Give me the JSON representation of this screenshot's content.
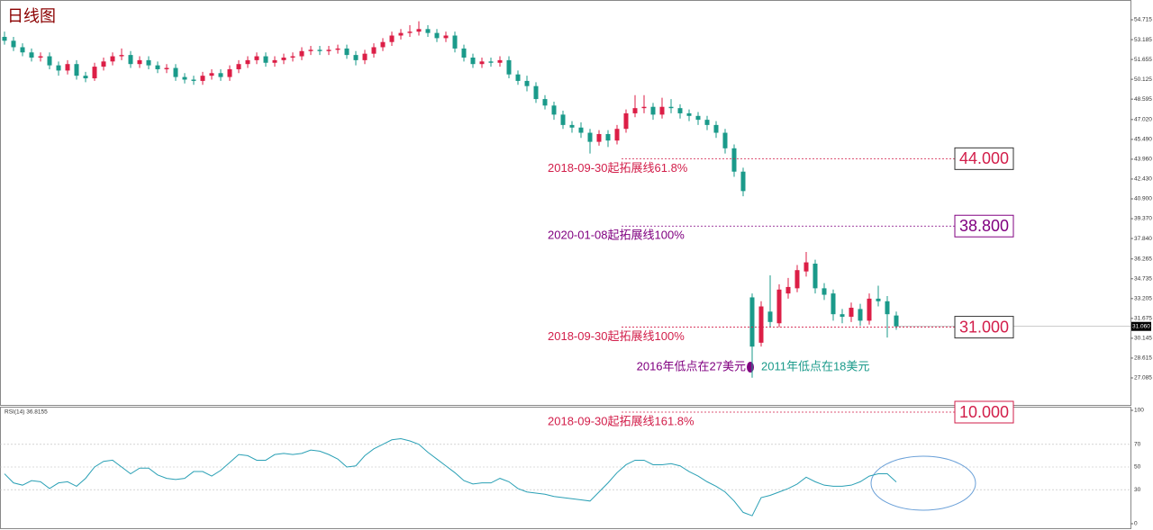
{
  "chart_data": [
    {
      "type": "candlestick",
      "title": "日线图",
      "up_color": "#dc1e46",
      "down_color": "#1a9a8a",
      "ylim": [
        25,
        56
      ],
      "yticks": [
        54.715,
        53.185,
        51.655,
        50.125,
        48.595,
        {
          "value": 47.02,
          "label": "47.020"
        },
        {
          "value": 45.49,
          "label": "45.490"
        },
        {
          "value": 43.96,
          "label": "43.960"
        },
        {
          "value": 42.43,
          "label": "42.430"
        },
        {
          "value": 40.9,
          "label": "40.900"
        },
        {
          "value": 39.37,
          "label": "39.370"
        },
        {
          "value": 37.84,
          "label": "37.840"
        },
        36.265,
        34.735,
        33.205,
        31.675,
        30.145,
        28.615,
        27.085
      ],
      "open": [
        53.4,
        53.1,
        52.6,
        52.2,
        51.8,
        51.9,
        51.2,
        50.8,
        51.3,
        50.4,
        50.2,
        51.1,
        51.5,
        51.9,
        52.0,
        51.3,
        51.6,
        51.2,
        50.9,
        51.0,
        50.3,
        50.1,
        50.0,
        50.4,
        50.6,
        50.3,
        50.9,
        51.3,
        51.6,
        51.9,
        51.4,
        51.6,
        51.8,
        51.9,
        52.3,
        52.4,
        52.3,
        52.4,
        52.5,
        52.0,
        51.6,
        52.1,
        52.6,
        53.0,
        53.5,
        53.7,
        53.8,
        54.0,
        53.7,
        53.3,
        53.5,
        52.5,
        51.8,
        51.3,
        51.5,
        51.4,
        51.6,
        50.5,
        50.0,
        49.6,
        48.6,
        48.1,
        47.4,
        46.6,
        46.4,
        46.0,
        45.3,
        45.9,
        45.4,
        46.3,
        47.5,
        47.9,
        48.0,
        47.4,
        48.0,
        47.9,
        47.5,
        47.3,
        47.0,
        46.6,
        46.0,
        44.8,
        43.0,
        33.3,
        29.8,
        32.2,
        31.3,
        33.6,
        34.0,
        35.3,
        35.9,
        34.0,
        33.6,
        32.0,
        31.8,
        32.4,
        31.5,
        33.2,
        33.0,
        31.9
      ],
      "high": [
        53.8,
        53.4,
        52.9,
        52.5,
        52.2,
        52.2,
        51.5,
        51.6,
        51.6,
        50.7,
        51.4,
        51.8,
        52.2,
        52.5,
        52.3,
        51.9,
        51.9,
        51.5,
        51.3,
        51.3,
        50.6,
        50.4,
        50.7,
        50.9,
        50.9,
        51.2,
        51.6,
        51.9,
        52.2,
        52.2,
        51.9,
        52.1,
        52.2,
        52.6,
        52.7,
        52.7,
        52.7,
        52.8,
        52.8,
        52.3,
        52.4,
        52.9,
        53.3,
        53.8,
        54.0,
        54.3,
        54.6,
        54.3,
        54.0,
        53.8,
        53.8,
        52.8,
        52.1,
        51.8,
        51.8,
        51.9,
        51.9,
        50.8,
        50.4,
        49.9,
        48.9,
        48.4,
        47.7,
        46.9,
        46.8,
        46.3,
        46.2,
        46.2,
        46.6,
        47.8,
        48.9,
        48.9,
        48.3,
        48.7,
        48.6,
        48.2,
        47.8,
        47.6,
        47.3,
        46.9,
        46.3,
        45.1,
        43.3,
        33.6,
        33.0,
        35.0,
        34.3,
        34.8,
        35.8,
        36.8,
        36.2,
        34.4,
        33.9,
        32.4,
        32.9,
        32.8,
        33.6,
        34.2,
        33.4,
        32.2
      ],
      "low": [
        52.8,
        52.3,
        51.9,
        51.5,
        51.5,
        50.9,
        50.4,
        50.5,
        50.1,
        49.9,
        50.0,
        50.8,
        51.2,
        51.6,
        51.0,
        51.0,
        50.9,
        50.6,
        50.6,
        50.0,
        49.8,
        49.7,
        49.7,
        50.1,
        50.0,
        50.0,
        50.6,
        51.0,
        51.3,
        51.1,
        51.1,
        51.3,
        51.5,
        51.6,
        52.0,
        52.0,
        52.0,
        52.1,
        51.7,
        51.2,
        51.3,
        51.8,
        52.3,
        52.7,
        53.2,
        53.4,
        53.5,
        53.4,
        53.0,
        53.0,
        52.2,
        51.5,
        51.0,
        51.0,
        51.1,
        51.1,
        50.2,
        49.7,
        49.2,
        48.3,
        47.8,
        47.0,
        46.3,
        46.0,
        45.6,
        44.4,
        45.0,
        44.9,
        45.1,
        46.0,
        47.2,
        47.5,
        47.0,
        47.1,
        47.5,
        47.1,
        46.9,
        46.6,
        46.2,
        45.6,
        44.4,
        42.6,
        41.1,
        27.1,
        29.5,
        31.0,
        31.0,
        33.2,
        33.7,
        34.9,
        33.6,
        33.1,
        31.5,
        31.3,
        31.4,
        31.1,
        31.2,
        32.6,
        30.2,
        30.8
      ],
      "close": [
        53.1,
        52.6,
        52.2,
        51.8,
        51.9,
        51.2,
        50.8,
        51.3,
        50.4,
        50.2,
        51.1,
        51.5,
        51.9,
        52.0,
        51.3,
        51.6,
        51.2,
        50.9,
        51.0,
        50.3,
        50.1,
        50.0,
        50.4,
        50.6,
        50.3,
        50.9,
        51.3,
        51.6,
        51.9,
        51.4,
        51.6,
        51.8,
        51.9,
        52.3,
        52.4,
        52.3,
        52.4,
        52.5,
        52.0,
        51.6,
        52.1,
        52.6,
        53.0,
        53.5,
        53.7,
        53.8,
        54.0,
        53.7,
        53.3,
        53.5,
        52.5,
        51.8,
        51.3,
        51.5,
        51.4,
        51.6,
        50.5,
        50.0,
        49.6,
        48.6,
        48.1,
        47.4,
        46.6,
        46.4,
        46.0,
        45.3,
        45.9,
        45.4,
        46.3,
        47.5,
        47.9,
        48.0,
        47.4,
        48.0,
        47.9,
        47.5,
        47.3,
        47.0,
        46.6,
        46.0,
        44.8,
        43.0,
        41.5,
        29.5,
        32.6,
        31.4,
        33.9,
        34.1,
        35.4,
        36.0,
        34.0,
        33.5,
        32.0,
        31.8,
        32.5,
        31.5,
        33.2,
        33.0,
        32.0,
        31.06
      ],
      "last_price_label": "31.060",
      "levels": [
        {
          "value": 44,
          "label": "44.000",
          "caption": "2018-09-30起拓展线61.8%",
          "color": "#d21e4a"
        },
        {
          "value": 38.8,
          "label": "38.800",
          "caption": "2020-01-08起拓展线100%",
          "color": "#800080"
        },
        {
          "value": 31,
          "label": "31.000",
          "caption": "2018-09-30起拓展线100%",
          "color": "#d21e4a"
        },
        {
          "value": 10,
          "label": "10.000",
          "caption": "2018-09-30起拓展线161.8%",
          "color": "#d21e4a"
        }
      ],
      "annotations": [
        {
          "text": "2016年低点在27美元",
          "color": "#800080"
        },
        {
          "text": "2011年低点在18美元",
          "color": "#1a9a8a"
        }
      ]
    },
    {
      "type": "line",
      "series": [
        {
          "name": "RSI(14) 36.8155",
          "color": "#2aa0b5",
          "values": [
            44,
            36,
            34,
            38,
            37,
            31,
            36,
            37,
            33,
            40,
            50,
            55,
            56,
            50,
            44,
            49,
            49,
            43,
            40,
            39,
            40,
            46,
            46,
            42,
            47,
            54,
            61,
            60,
            56,
            56,
            61,
            62,
            61,
            62,
            65,
            64,
            61,
            57,
            50,
            51,
            60,
            66,
            70,
            74,
            75,
            73,
            70,
            63,
            57,
            51,
            45,
            38,
            35,
            36,
            36,
            40,
            37,
            31,
            28,
            27,
            26,
            24,
            23,
            22,
            21,
            20,
            28,
            36,
            45,
            52,
            56,
            56,
            52,
            52,
            53,
            51,
            46,
            42,
            37,
            33,
            28,
            20,
            10,
            7,
            23,
            25,
            28,
            31,
            35,
            41,
            37,
            34,
            33,
            33,
            34,
            37,
            42,
            44,
            44,
            36.8155
          ]
        }
      ],
      "ylim": [
        0,
        100
      ],
      "yticks": [
        0,
        30,
        50,
        70,
        100
      ]
    }
  ]
}
